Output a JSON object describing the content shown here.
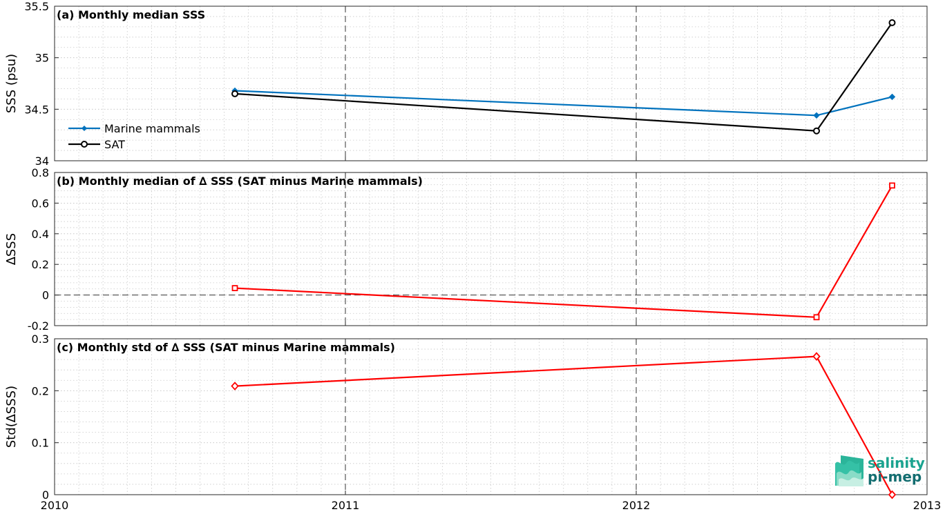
{
  "chart_data": [
    {
      "type": "line",
      "title": "(a) Monthly median SSS",
      "ylabel": "SSS (psu)",
      "xlim": [
        2010,
        2013
      ],
      "ylim": [
        34,
        35.5
      ],
      "xticks": [
        "2010",
        "2011",
        "2012",
        "2013"
      ],
      "yticks": [
        "34",
        "34.5",
        "35",
        "35.5"
      ],
      "legend_position": "left",
      "grid": true,
      "series": [
        {
          "name": "Marine mammals",
          "color": "#0072bd",
          "marker": "dot",
          "x": [
            2010.62,
            2012.62,
            2012.88
          ],
          "y": [
            34.68,
            34.44,
            34.62
          ]
        },
        {
          "name": "SAT",
          "color": "#000000",
          "marker": "circle",
          "x": [
            2010.62,
            2012.62,
            2012.88
          ],
          "y": [
            34.65,
            34.29,
            35.34
          ]
        }
      ]
    },
    {
      "type": "line",
      "title": "(b) Monthly median of ∆ SSS (SAT minus Marine mammals)",
      "ylabel": "∆SSS",
      "xlim": [
        2010,
        2013
      ],
      "ylim": [
        -0.2,
        0.8
      ],
      "xticks": [
        "2010",
        "2011",
        "2012",
        "2013"
      ],
      "yticks": [
        "-0.2",
        "0",
        "0.2",
        "0.4",
        "0.6",
        "0.8"
      ],
      "grid": true,
      "zero_line": true,
      "series": [
        {
          "color": "#ff0000",
          "marker": "square",
          "x": [
            2010.62,
            2012.62,
            2012.88
          ],
          "y": [
            0.045,
            -0.145,
            0.715
          ]
        }
      ]
    },
    {
      "type": "line",
      "title": "(c) Monthly std of ∆ SSS (SAT minus Marine mammals)",
      "ylabel": "Std(∆SSS)",
      "xlim": [
        2010,
        2013
      ],
      "ylim": [
        0,
        0.3
      ],
      "xticks": [
        "2010",
        "2011",
        "2012",
        "2013"
      ],
      "yticks": [
        "0",
        "0.1",
        "0.2",
        "0.3"
      ],
      "grid": true,
      "series": [
        {
          "color": "#ff0000",
          "marker": "diamond",
          "x": [
            2010.62,
            2012.62,
            2012.88
          ],
          "y": [
            0.209,
            0.266,
            0.0
          ]
        }
      ]
    }
  ],
  "logo": {
    "line1": "salinity",
    "line2": "pi-mep"
  }
}
